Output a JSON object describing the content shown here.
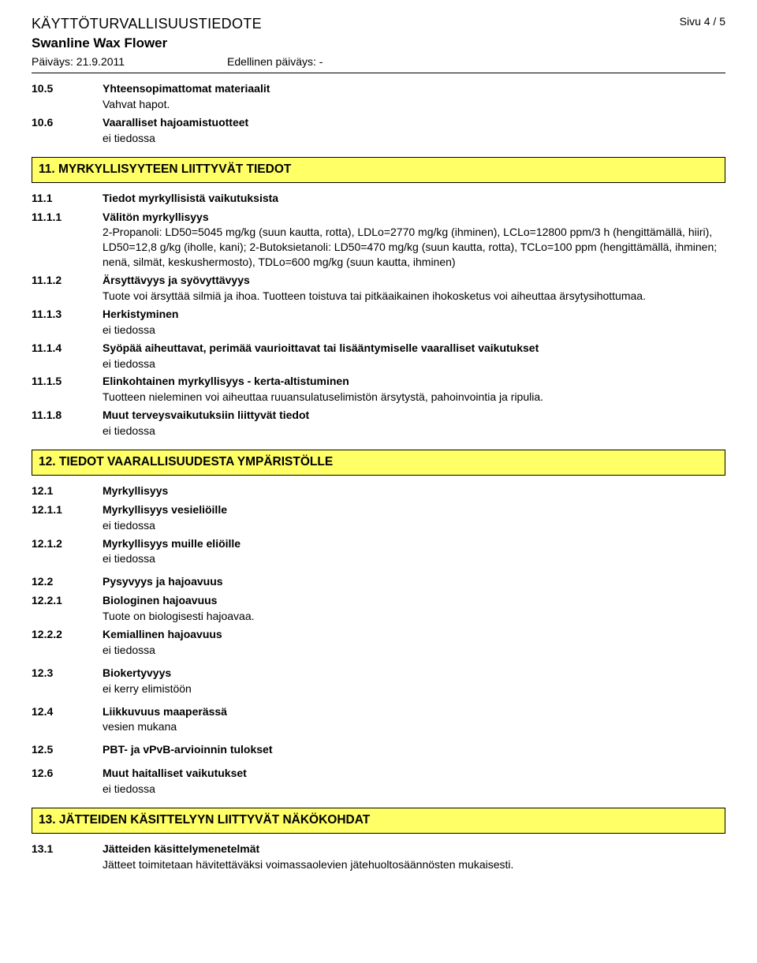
{
  "colors": {
    "banner_bg": "#ffff66",
    "banner_border": "#000000",
    "text": "#000000",
    "background": "#ffffff"
  },
  "typography": {
    "body_font": "Arial",
    "body_size_pt": 10.5,
    "title_size_pt": 13,
    "banner_size_pt": 11.5
  },
  "header": {
    "doc_title": "KÄYTTÖTURVALLISUUSTIEDOTE",
    "page_label": "Sivu 4 / 5",
    "product_name": "Swanline Wax Flower",
    "date_label": "Päiväys: 21.9.2011",
    "prev_date_label": "Edellinen päiväys: -"
  },
  "s10": {
    "e1": {
      "num": "10.5",
      "heading": "Yhteensopimattomat materiaalit",
      "body": "Vahvat hapot."
    },
    "e2": {
      "num": "10.6",
      "heading": "Vaaralliset hajoamistuotteet",
      "body": "ei tiedossa"
    }
  },
  "s11": {
    "banner": "11. MYRKYLLISYYTEEN LIITTYVÄT TIEDOT",
    "e1": {
      "num": "11.1",
      "heading": "Tiedot myrkyllisistä vaikutuksista"
    },
    "e2": {
      "num": "11.1.1",
      "heading": "Välitön myrkyllisyys",
      "body": "2-Propanoli: LD50=5045 mg/kg (suun kautta, rotta), LDLo=2770 mg/kg (ihminen), LCLo=12800 ppm/3 h (hengittämällä, hiiri), LD50=12,8 g/kg (iholle, kani);  2-Butoksietanoli: LD50=470 mg/kg (suun kautta, rotta), TCLo=100 ppm (hengittämällä, ihminen; nenä, silmät, keskushermosto), TDLo=600 mg/kg (suun kautta, ihminen)"
    },
    "e3": {
      "num": "11.1.2",
      "heading": "Ärsyttävyys ja syövyttävyys",
      "body": "Tuote voi ärsyttää silmiä ja ihoa. Tuotteen toistuva tai pitkäaikainen ihokosketus voi aiheuttaa ärsytysihottumaa."
    },
    "e4": {
      "num": "11.1.3",
      "heading": "Herkistyminen",
      "body": "ei tiedossa"
    },
    "e5": {
      "num": "11.1.4",
      "heading": "Syöpää aiheuttavat, perimää vaurioittavat tai lisääntymiselle vaaralliset vaikutukset",
      "body": "ei tiedossa"
    },
    "e6": {
      "num": "11.1.5",
      "heading": "Elinkohtainen myrkyllisyys - kerta-altistuminen",
      "body": "Tuotteen nieleminen voi aiheuttaa ruuansulatuselimistön ärsytystä, pahoinvointia ja ripulia."
    },
    "e7": {
      "num": "11.1.8",
      "heading": "Muut terveysvaikutuksiin liittyvät tiedot",
      "body": "ei tiedossa"
    }
  },
  "s12": {
    "banner": "12. TIEDOT VAARALLISUUDESTA YMPÄRISTÖLLE",
    "e1": {
      "num": "12.1",
      "heading": "Myrkyllisyys"
    },
    "e2": {
      "num": "12.1.1",
      "heading": "Myrkyllisyys vesieliöille",
      "body": "ei tiedossa"
    },
    "e3": {
      "num": "12.1.2",
      "heading": "Myrkyllisyys muille eliöille",
      "body": "ei tiedossa"
    },
    "e4": {
      "num": "12.2",
      "heading": "Pysyvyys ja hajoavuus"
    },
    "e5": {
      "num": "12.2.1",
      "heading": "Biologinen hajoavuus",
      "body": "Tuote on biologisesti hajoavaa."
    },
    "e6": {
      "num": "12.2.2",
      "heading": "Kemiallinen hajoavuus",
      "body": "ei tiedossa"
    },
    "e7": {
      "num": "12.3",
      "heading": "Biokertyvyys",
      "body": "ei kerry elimistöön"
    },
    "e8": {
      "num": "12.4",
      "heading": "Liikkuvuus maaperässä",
      "body": "vesien mukana"
    },
    "e9": {
      "num": "12.5",
      "heading": "PBT- ja vPvB-arvioinnin tulokset"
    },
    "e10": {
      "num": "12.6",
      "heading": "Muut haitalliset vaikutukset",
      "body": "ei tiedossa"
    }
  },
  "s13": {
    "banner": "13. JÄTTEIDEN KÄSITTELYYN LIITTYVÄT NÄKÖKOHDAT",
    "e1": {
      "num": "13.1",
      "heading": "Jätteiden käsittelymenetelmät",
      "body": "Jätteet toimitetaan hävitettäväksi voimassaolevien jätehuoltosäännösten mukaisesti."
    }
  }
}
